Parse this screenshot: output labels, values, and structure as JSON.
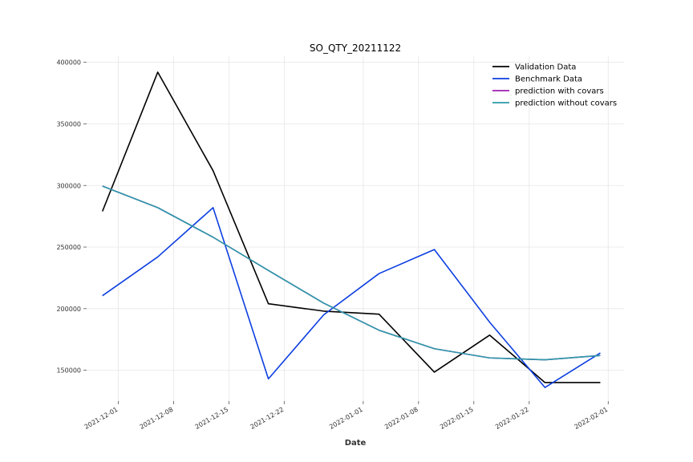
{
  "chart_data": {
    "type": "line",
    "title": "SO_QTY_20211122",
    "xlabel": "Date",
    "ylabel": "",
    "x_dates": [
      "2021-11-29",
      "2021-12-06",
      "2021-12-13",
      "2021-12-20",
      "2021-12-27",
      "2022-01-03",
      "2022-01-10",
      "2022-01-17",
      "2022-01-24",
      "2022-01-31"
    ],
    "x_ticks": [
      "2021-12-01",
      "2021-12-08",
      "2021-12-15",
      "2021-12-22",
      "2022-01-01",
      "2022-01-08",
      "2022-01-15",
      "2022-01-22",
      "2022-02-01"
    ],
    "y_ticks": [
      150000,
      200000,
      250000,
      300000,
      350000,
      400000
    ],
    "y_tick_labels": [
      "150000",
      "200000",
      "250000",
      "300000",
      "350000",
      "400000"
    ],
    "xlim": [
      "2021-11-27",
      "2022-02-03"
    ],
    "ylim": [
      125000,
      405000
    ],
    "grid": true,
    "legend_position": "top-right",
    "series": [
      {
        "name": "Validation Data",
        "color": "#000000",
        "values": [
          279000,
          392000,
          312000,
          204000,
          198000,
          195500,
          148500,
          178500,
          140000,
          140000
        ]
      },
      {
        "name": "Benchmark Data",
        "color": "#0d3fe0",
        "values": [
          210500,
          242000,
          282000,
          143000,
          195000,
          228500,
          248000,
          189000,
          136000,
          164000
        ]
      },
      {
        "name": "prediction with covars",
        "color": "#9b1fb0",
        "values": [
          299500,
          282000,
          258000,
          231000,
          204500,
          182500,
          167500,
          160000,
          158500,
          162000
        ]
      },
      {
        "name": "prediction without covars",
        "color": "#2a9aa8",
        "values": [
          299500,
          282000,
          258000,
          231000,
          204500,
          182500,
          167500,
          160000,
          158500,
          162000
        ]
      }
    ]
  }
}
